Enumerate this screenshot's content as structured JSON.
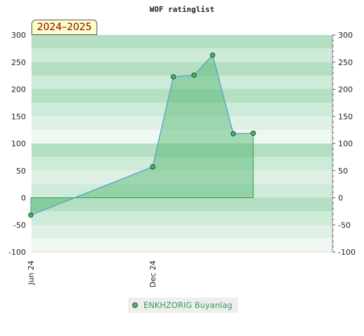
{
  "chart_data": {
    "type": "area",
    "title": "WOF ratinglist",
    "season_label": "2024–2025",
    "ylim": [
      -100,
      300
    ],
    "yticks": [
      -100,
      -50,
      0,
      50,
      100,
      150,
      200,
      250,
      300
    ],
    "xlim": [
      "2024-06-02",
      "2025-08-28"
    ],
    "xtick_labels": [
      {
        "date": "2024-06-01",
        "label": "Jun 24"
      },
      {
        "date": "2024-12-01",
        "label": "Dec 24"
      }
    ],
    "series": [
      {
        "name": "ENKHZORIG Buyanlag",
        "points": [
          {
            "x": "2024-06-01",
            "y": -32
          },
          {
            "x": "2024-12-01",
            "y": 57
          },
          {
            "x": "2025-01-01",
            "y": 223
          },
          {
            "x": "2025-02-01",
            "y": 226
          },
          {
            "x": "2025-03-01",
            "y": 263
          },
          {
            "x": "2025-04-01",
            "y": 118
          },
          {
            "x": "2025-05-01",
            "y": 119
          }
        ]
      }
    ],
    "grid": true,
    "legend_position": "bottom-center",
    "colors": {
      "line": "#5aa3d6",
      "fill": "#4cb36a",
      "marker": "#4cb36a",
      "band_dark": "#b4dfc3",
      "band_mid": "#cdebd8",
      "band_light": "#dff1e5",
      "band_pale": "#eef8f1"
    }
  }
}
